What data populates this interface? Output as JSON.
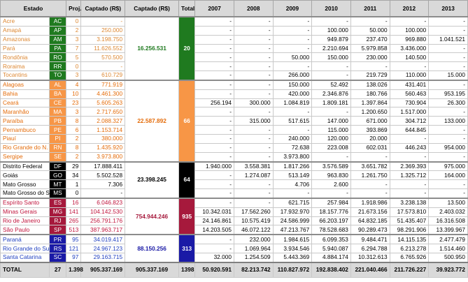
{
  "headers": {
    "estado": "Estado",
    "proj": "Proj.",
    "captado": "Captado (R$)",
    "captado_regiao": "Captado (R$)",
    "total": "Total",
    "years": [
      "2007",
      "2008",
      "2009",
      "2010",
      "2011",
      "2012",
      "2013"
    ]
  },
  "colors": {
    "norte": "#1f7a1f",
    "nordeste": "#f79646",
    "centro_oeste": "#000000",
    "sudeste": "#a6193c",
    "sul": "#1a1aa6"
  },
  "regions": [
    {
      "key": "norte",
      "color": "#1f7a1f",
      "text_color": "#dd8833",
      "total_text_color": "#1f7a1f",
      "captado": "16.256.531",
      "count": "20",
      "rows": [
        {
          "estado": "Acre",
          "uf": "AC",
          "proj": "0",
          "captado": "-",
          "years": [
            "-",
            "-",
            "-",
            "-",
            "-",
            "-",
            "-"
          ]
        },
        {
          "estado": "Amapá",
          "uf": "AP",
          "proj": "2",
          "captado": "250.000",
          "years": [
            "-",
            "-",
            "-",
            "100.000",
            "50.000",
            "100.000",
            "-"
          ]
        },
        {
          "estado": "Amazonas",
          "uf": "AM",
          "proj": "3",
          "captado": "3.198.750",
          "years": [
            "-",
            "-",
            "-",
            "949.879",
            "237.470",
            "969.880",
            "1.041.521"
          ]
        },
        {
          "estado": "Pará",
          "uf": "PA",
          "proj": "7",
          "captado": "11.626.552",
          "years": [
            "-",
            "-",
            "-",
            "2.210.694",
            "5.979.858",
            "3.436.000",
            "-"
          ]
        },
        {
          "estado": "Rondônia",
          "uf": "RO",
          "proj": "5",
          "captado": "570.500",
          "years": [
            "-",
            "-",
            "50.000",
            "150.000",
            "230.000",
            "140.500",
            "-"
          ]
        },
        {
          "estado": "Roraima",
          "uf": "RR",
          "proj": "0",
          "captado": "-",
          "years": [
            "-",
            "-",
            "-",
            "-",
            "-",
            "-",
            "-"
          ]
        },
        {
          "estado": "Tocantins",
          "uf": "TO",
          "proj": "3",
          "captado": "610.729",
          "years": [
            "-",
            "-",
            "266.000",
            "-",
            "219.729",
            "110.000",
            "15.000"
          ]
        }
      ]
    },
    {
      "key": "nordeste",
      "color": "#f79646",
      "text_color": "#e46c0a",
      "total_text_color": "#e46c0a",
      "captado": "22.587.892",
      "count": "66",
      "rows": [
        {
          "estado": "Alagoas",
          "uf": "AL",
          "proj": "4",
          "captado": "771.919",
          "years": [
            "-",
            "-",
            "150.000",
            "52.492",
            "138.026",
            "431.401",
            "-"
          ]
        },
        {
          "estado": "Bahia",
          "uf": "BA",
          "proj": "10",
          "captado": "4.461.300",
          "years": [
            "-",
            "-",
            "420.000",
            "2.346.876",
            "180.766",
            "560.463",
            "953.195"
          ]
        },
        {
          "estado": "Ceará",
          "uf": "CE",
          "proj": "23",
          "captado": "5.605.263",
          "years": [
            "256.194",
            "300.000",
            "1.084.819",
            "1.809.181",
            "1.397.864",
            "730.904",
            "26.300"
          ]
        },
        {
          "estado": "Maranhão",
          "uf": "MA",
          "proj": "3",
          "captado": "2.717.650",
          "years": [
            "-",
            "-",
            "-",
            "-",
            "1.200.650",
            "1.517.000",
            "-"
          ]
        },
        {
          "estado": "Paraíba",
          "uf": "PB",
          "proj": "8",
          "captado": "2.088.327",
          "years": [
            "-",
            "315.000",
            "517.615",
            "147.000",
            "671.000",
            "304.712",
            "133.000"
          ]
        },
        {
          "estado": "Pernambuco",
          "uf": "PE",
          "proj": "6",
          "captado": "1.153.714",
          "years": [
            "-",
            "-",
            "-",
            "115.000",
            "393.869",
            "644.845",
            "-"
          ]
        },
        {
          "estado": "Piauí",
          "uf": "PI",
          "proj": "2",
          "captado": "380.000",
          "years": [
            "-",
            "-",
            "240.000",
            "120.000",
            "20.000",
            "-",
            "-"
          ]
        },
        {
          "estado": "Rio Grande do N.",
          "uf": "RN",
          "proj": "8",
          "captado": "1.435.920",
          "years": [
            "-",
            "-",
            "72.638",
            "223.008",
            "602.031",
            "446.243",
            "954.000"
          ]
        },
        {
          "estado": "Sergipe",
          "uf": "SE",
          "proj": "2",
          "captado": "3.973.800",
          "years": [
            "-",
            "-",
            "3.973.800",
            "-",
            "-",
            "-",
            "-"
          ]
        }
      ]
    },
    {
      "key": "centro_oeste",
      "color": "#000000",
      "text_color": "#000000",
      "total_text_color": "#000000",
      "captado": "23.398.245",
      "count": "64",
      "rows": [
        {
          "estado": "Distrito Federal",
          "uf": "DF",
          "proj": "29",
          "captado": "17.888.411",
          "years": [
            "1.940.000",
            "3.558.381",
            "1.817.266",
            "3.576.589",
            "3.651.782",
            "2.369.393",
            "975.000"
          ]
        },
        {
          "estado": "Goiás",
          "uf": "GO",
          "proj": "34",
          "captado": "5.502.528",
          "years": [
            "-",
            "1.274.087",
            "513.149",
            "963.830",
            "1.261.750",
            "1.325.712",
            "164.000"
          ]
        },
        {
          "estado": "Mato Grosso",
          "uf": "MT",
          "proj": "1",
          "captado": "7.306",
          "years": [
            "-",
            "-",
            "4.706",
            "2.600",
            "-",
            "-",
            "-"
          ]
        },
        {
          "estado": "Mato Grosso do S.",
          "uf": "MS",
          "proj": "0",
          "captado": "-",
          "years": [
            "-",
            "-",
            "-",
            "-",
            "-",
            "-",
            "-"
          ]
        }
      ]
    },
    {
      "key": "sudeste",
      "color": "#a6193c",
      "text_color": "#c0143c",
      "total_text_color": "#a6193c",
      "captado": "754.944.246",
      "count": "935",
      "rows": [
        {
          "estado": "Espírito Santo",
          "uf": "ES",
          "proj": "16",
          "captado": "6.046.823",
          "years": [
            "-",
            "-",
            "621.715",
            "257.984",
            "1.918.986",
            "3.238.138",
            "13.500"
          ]
        },
        {
          "estado": "Minas Gerais",
          "uf": "MG",
          "proj": "141",
          "captado": "104.142.530",
          "years": [
            "10.342.031",
            "17.562.260",
            "17.932.970",
            "18.157.776",
            "21.673.156",
            "17.573.810",
            "2.403.032"
          ]
        },
        {
          "estado": "Rio de Janeiro",
          "uf": "RJ",
          "proj": "265",
          "captado": "256.791.176",
          "years": [
            "24.146.861",
            "10.575.419",
            "24.586.999",
            "66.203.197",
            "64.832.185",
            "51.435.407",
            "16.316.508"
          ]
        },
        {
          "estado": "São Paulo",
          "uf": "SP",
          "proj": "513",
          "captado": "387.963.717",
          "years": [
            "14.203.505",
            "46.072.122",
            "47.213.767",
            "78.528.683",
            "90.289.473",
            "98.291.906",
            "13.399.967"
          ]
        }
      ]
    },
    {
      "key": "sul",
      "color": "#1a1aa6",
      "text_color": "#1f3fbf",
      "total_text_color": "#1a1aa6",
      "captado": "88.150.256",
      "count": "313",
      "rows": [
        {
          "estado": "Paraná",
          "uf": "PR",
          "proj": "95",
          "captado": "34.019.417",
          "years": [
            "-",
            "232.000",
            "1.984.615",
            "6.099.353",
            "9.484.471",
            "14.115.135",
            "2.477.479"
          ]
        },
        {
          "estado": "Rio Grande do Sul",
          "uf": "RS",
          "proj": "121",
          "captado": "24.967.123",
          "years": [
            "-",
            "1.069.964",
            "3.934.546",
            "5.940.087",
            "6.294.788",
            "6.213.278",
            "1.514.460"
          ]
        },
        {
          "estado": "Santa Catarina",
          "uf": "SC",
          "proj": "97",
          "captado": "29.163.715",
          "years": [
            "32.000",
            "1.254.509",
            "5.443.369",
            "4.884.174",
            "10.312.613",
            "6.765.926",
            "500.950"
          ]
        }
      ]
    }
  ],
  "total": {
    "label": "TOTAL",
    "uf": "27",
    "proj": "1.398",
    "captado": "905.337.169",
    "captado_regiao": "905.337.169",
    "count": "1398",
    "years": [
      "50.920.591",
      "82.213.742",
      "110.827.972",
      "192.838.402",
      "221.040.466",
      "211.726.227",
      "39.923.772"
    ]
  }
}
